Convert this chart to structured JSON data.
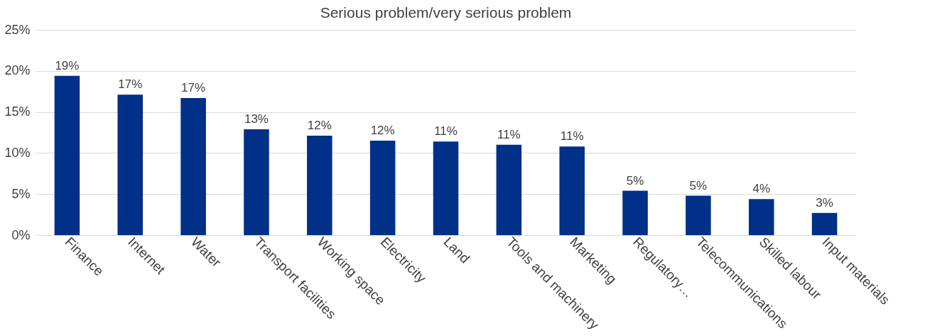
{
  "chart_data": {
    "type": "bar",
    "title": "Serious problem/very serious problem",
    "categories": [
      "Finance",
      "Internet",
      "Water",
      "Transport facilities",
      "Working space",
      "Electricity",
      "Land",
      "Tools and machinery",
      "Marketing",
      "Regulatory…",
      "Telecommunications",
      "Skilled labour",
      "Input materials"
    ],
    "values": [
      19.4,
      17.1,
      16.7,
      12.9,
      12.1,
      11.5,
      11.4,
      11.0,
      10.8,
      5.4,
      4.8,
      4.4,
      2.7
    ],
    "value_labels": [
      "19%",
      "17%",
      "17%",
      "13%",
      "12%",
      "12%",
      "11%",
      "11%",
      "11%",
      "5%",
      "5%",
      "4%",
      "3%"
    ],
    "color": "#003087",
    "ylim": [
      0,
      25
    ],
    "yticks": [
      {
        "value": 0,
        "label": "0%"
      },
      {
        "value": 5,
        "label": "5%"
      },
      {
        "value": 10,
        "label": "10%"
      },
      {
        "value": 15,
        "label": "15%"
      },
      {
        "value": 20,
        "label": "20%"
      },
      {
        "value": 25,
        "label": "25%"
      }
    ],
    "grid": "y"
  }
}
